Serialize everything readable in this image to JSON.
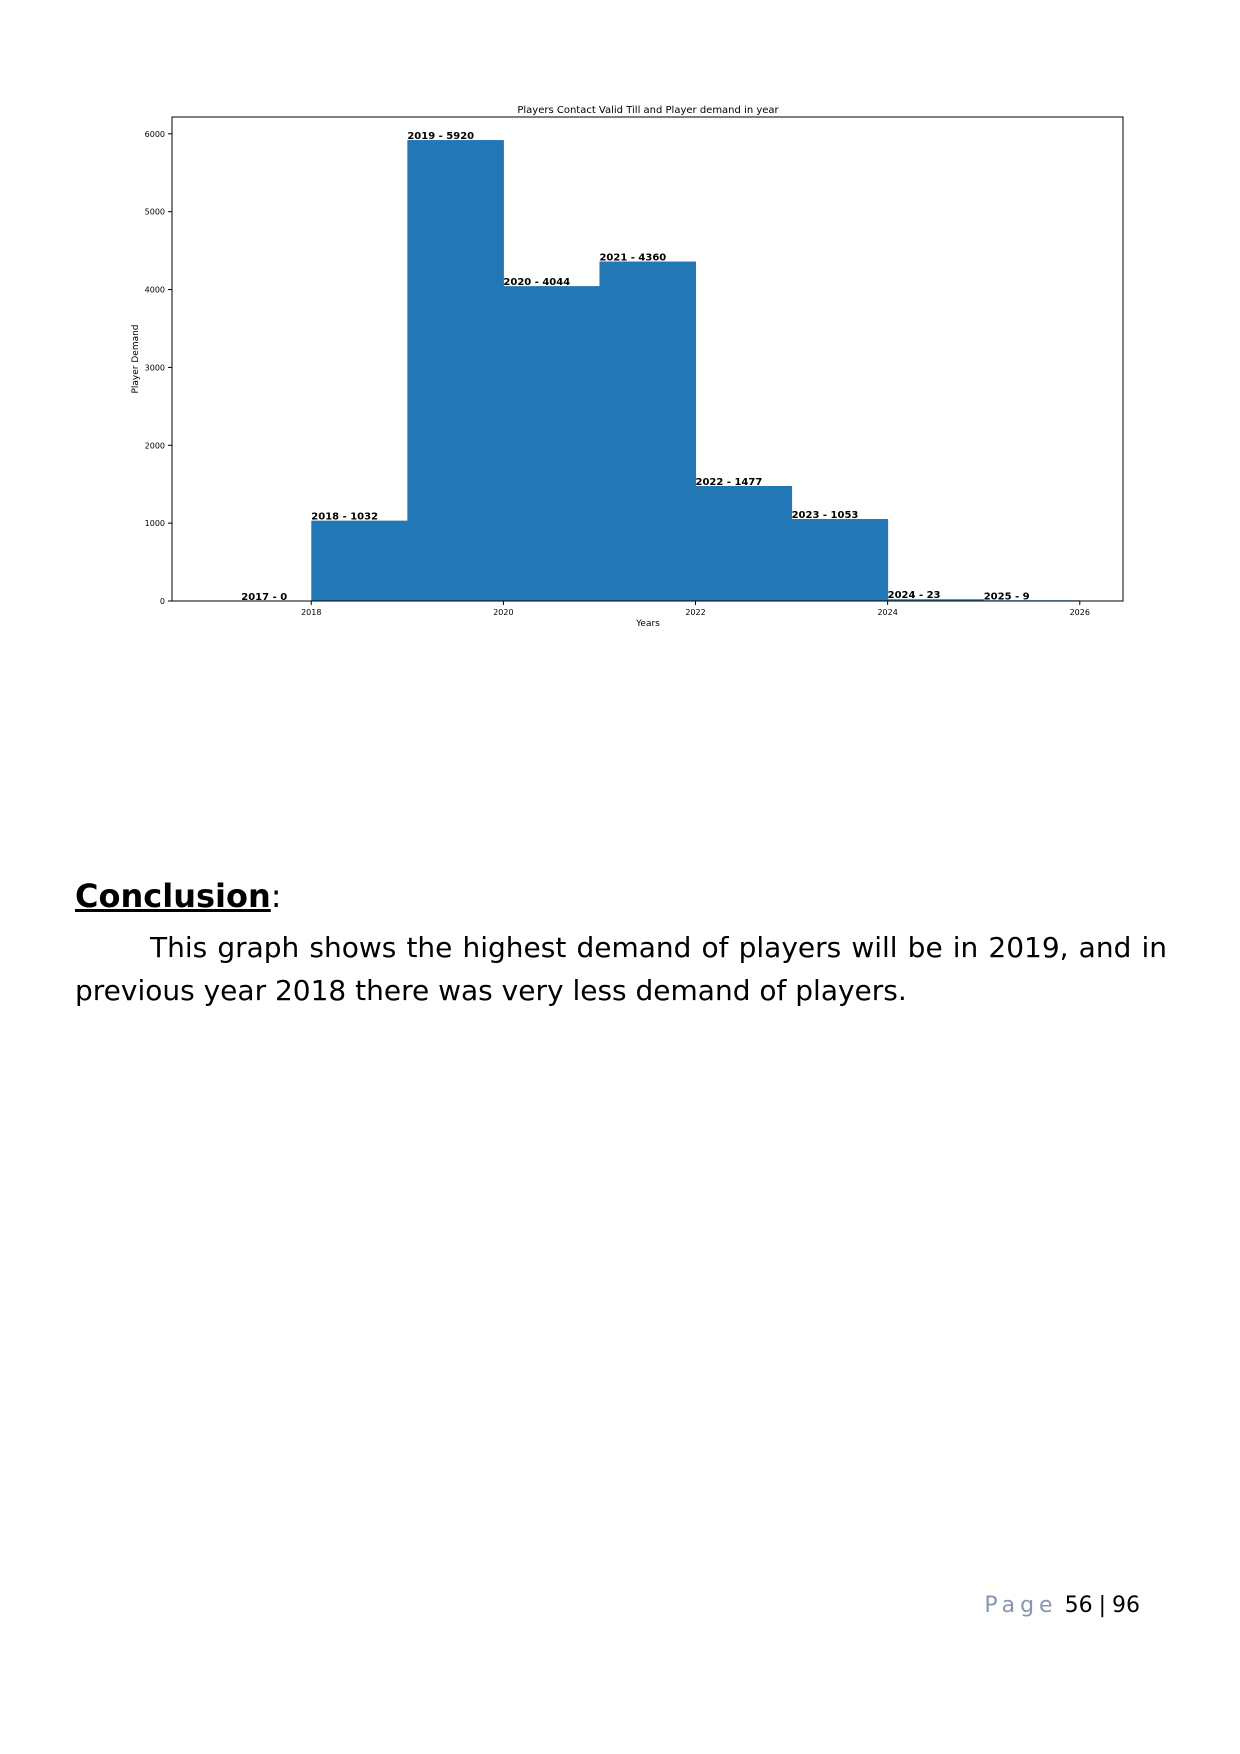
{
  "chart_data": {
    "type": "bar",
    "title": "Players Contact Valid Till and Player demand in year",
    "xlabel": "Years",
    "ylabel": "Player Demand",
    "x": [
      2017,
      2018,
      2019,
      2020,
      2021,
      2022,
      2023,
      2024,
      2025
    ],
    "values": [
      0,
      1032,
      5920,
      4044,
      4360,
      1477,
      1053,
      23,
      9
    ],
    "bar_labels": [
      "2017 - 0",
      "2018 - 1032",
      "2019 - 5920",
      "2020 - 4044",
      "2021 - 4360",
      "2022 - 1477",
      "2023 - 1053",
      "2024 - 23",
      "2025 - 9"
    ],
    "xticks": [
      "2018",
      "2020",
      "2022",
      "2024",
      "2026"
    ],
    "yticks": [
      "0",
      "1000",
      "2000",
      "3000",
      "4000",
      "5000",
      "6000"
    ],
    "xlim": [
      2016.55,
      2026.45
    ],
    "ylim": [
      0,
      6216
    ],
    "bar_color": "#2277b4",
    "grid": false,
    "legend": "none"
  },
  "conclusion": {
    "heading": "Conclusion",
    "colon": ":",
    "text": "This graph shows the highest demand of players will be in 2019, and in previous year 2018 there was very less demand of players."
  },
  "footer": {
    "page_word": "Page",
    "page_number": "56",
    "separator": "|",
    "total_pages": "96"
  }
}
